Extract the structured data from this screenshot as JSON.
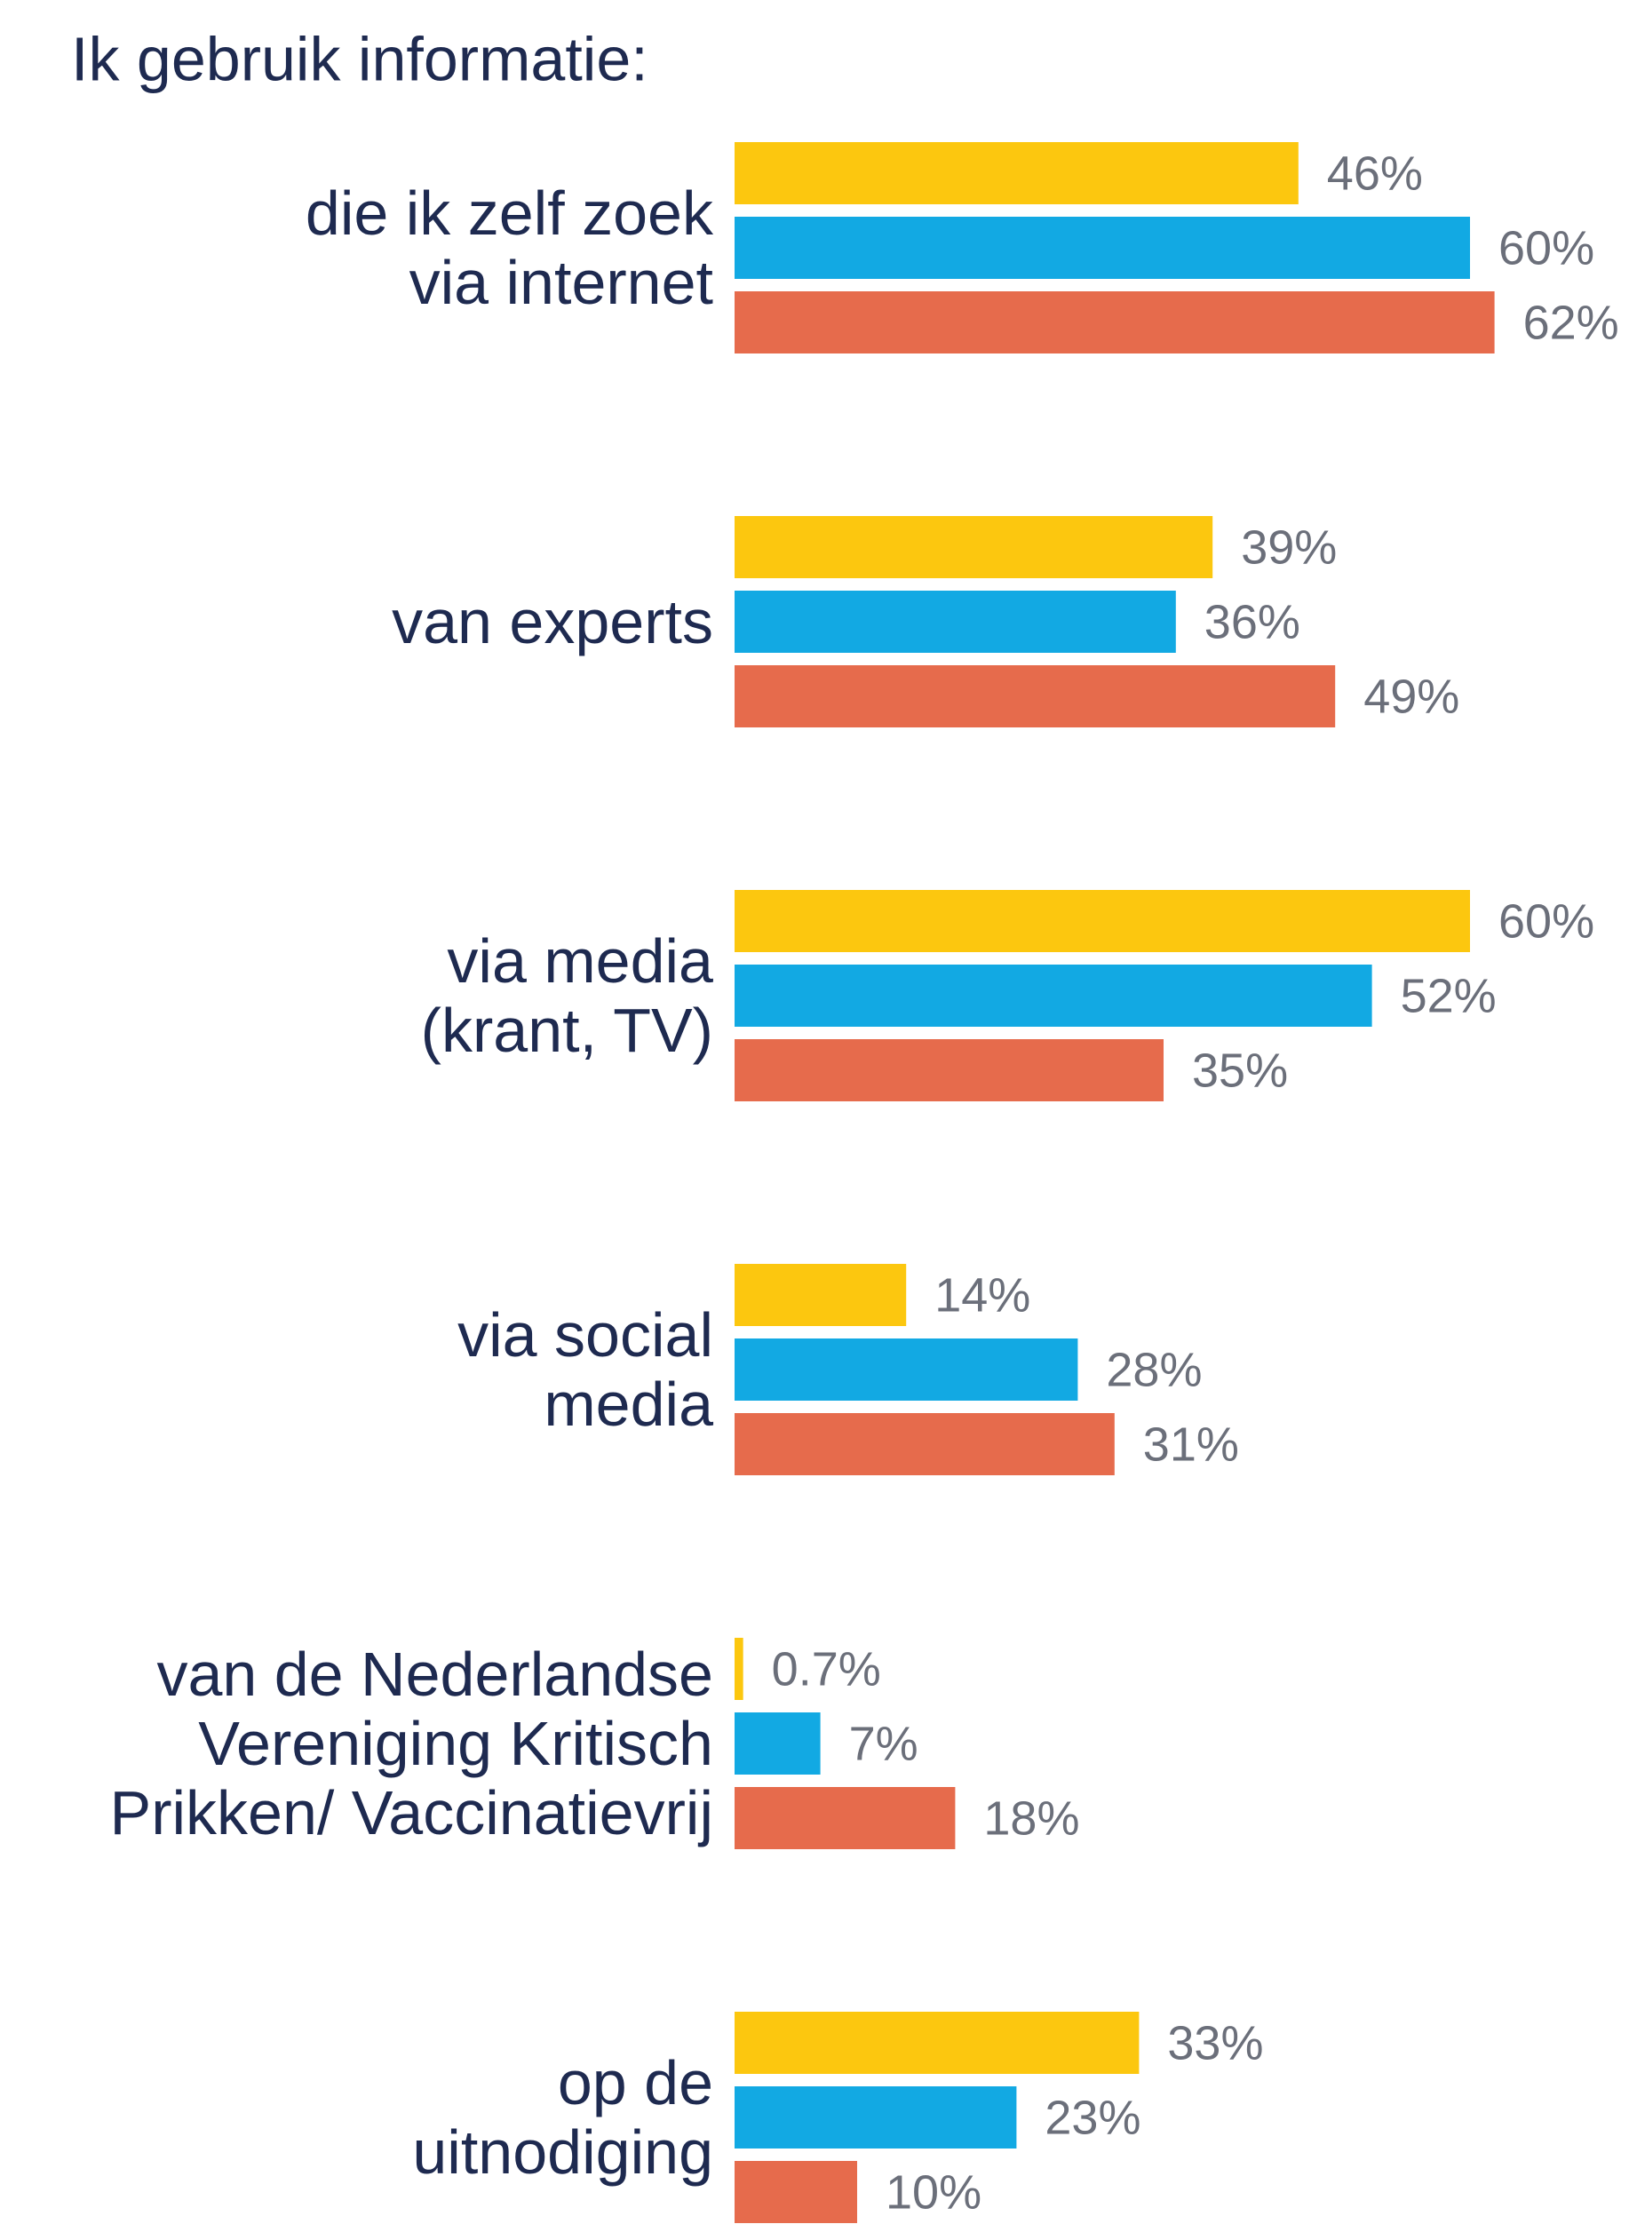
{
  "chart_data": {
    "type": "bar",
    "orientation": "horizontal",
    "title": "Ik gebruik informatie:",
    "categories": [
      "die ik zelf zoek\nvia internet",
      "van experts",
      "via media\n(krant, TV)",
      "via social\nmedia",
      "van de Nederlandse\nVereniging Kritisch\nPrikken/ Vaccinatievrij",
      "op de\nuitnodiging"
    ],
    "series": [
      {
        "color": "#fcc70f",
        "values": [
          46,
          39,
          60,
          14,
          0.7,
          33
        ],
        "value_labels": [
          "46%",
          "39%",
          "60%",
          "14%",
          "0.7%",
          "33%"
        ]
      },
      {
        "color": "#12a9e3",
        "values": [
          60,
          36,
          52,
          28,
          7,
          23
        ],
        "value_labels": [
          "60%",
          "36%",
          "52%",
          "28%",
          "7%",
          "23%"
        ]
      },
      {
        "color": "#e66b4c",
        "values": [
          62,
          49,
          35,
          31,
          18,
          10
        ],
        "value_labels": [
          "62%",
          "49%",
          "35%",
          "31%",
          "18%",
          "10%"
        ]
      }
    ]
  }
}
